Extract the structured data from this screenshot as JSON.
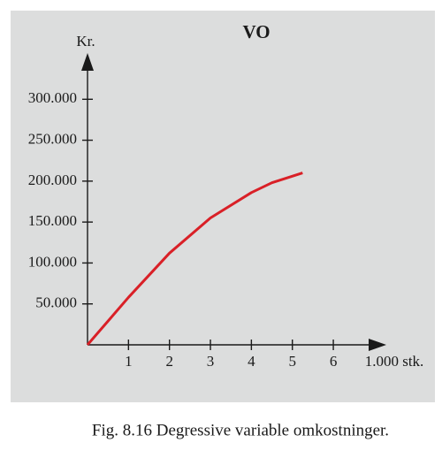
{
  "chart_data": {
    "type": "line",
    "title": "VO",
    "ylabel": "Kr.",
    "xlabel": "1.000 stk.",
    "caption": "Fig. 8.16 Degressive variable omkostninger.",
    "x": [
      0,
      1,
      2,
      3,
      4,
      4.5,
      5.25
    ],
    "series": [
      {
        "name": "VO",
        "color": "#d92027",
        "values": [
          0,
          58000,
          112000,
          155000,
          186000,
          198000,
          210000
        ]
      }
    ],
    "xlim": [
      0,
      7.25
    ],
    "ylim": [
      0,
      350000
    ],
    "xticks": [
      1,
      2,
      3,
      4,
      5,
      6
    ],
    "yticks": [
      {
        "value": 50000,
        "label": "50.000"
      },
      {
        "value": 100000,
        "label": "100.000"
      },
      {
        "value": 150000,
        "label": "150.000"
      },
      {
        "value": 200000,
        "label": "200.000"
      },
      {
        "value": 250000,
        "label": "250.000"
      },
      {
        "value": 300000,
        "label": "300.000"
      }
    ],
    "grid": false
  }
}
